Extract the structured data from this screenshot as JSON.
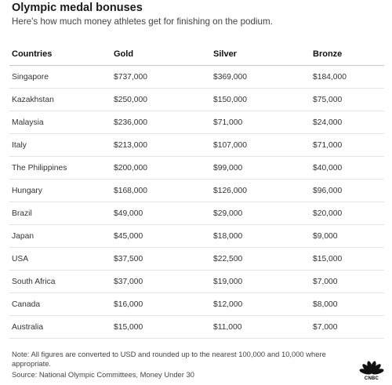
{
  "header": {
    "title": "Olympic medal bonuses",
    "subtitle": "Here's how much money athletes get for finishing on the podium."
  },
  "table": {
    "columns": [
      "Countries",
      "Gold",
      "Silver",
      "Bronze"
    ],
    "rows": [
      [
        "Singapore",
        "$737,000",
        "$369,000",
        "$184,000"
      ],
      [
        "Kazakhstan",
        "$250,000",
        "$150,000",
        "$75,000"
      ],
      [
        "Malaysia",
        "$236,000",
        "$71,000",
        "$24,000"
      ],
      [
        "Italy",
        "$213,000",
        "$107,000",
        "$71,000"
      ],
      [
        "The Philippines",
        "$200,000",
        "$99,000",
        "$40,000"
      ],
      [
        "Hungary",
        "$168,000",
        "$126,000",
        "$96,000"
      ],
      [
        "Brazil",
        "$49,000",
        "$29,000",
        "$20,000"
      ],
      [
        "Japan",
        "$45,000",
        "$18,000",
        "$9,000"
      ],
      [
        "USA",
        "$37,500",
        "$22,500",
        "$15,000"
      ],
      [
        "South Africa",
        "$37,000",
        "$19,000",
        "$7,000"
      ],
      [
        "Canada",
        "$16,000",
        "$12,000",
        "$8,000"
      ],
      [
        "Australia",
        "$15,000",
        "$11,000",
        "$7,000"
      ]
    ]
  },
  "footer": {
    "note": "Note: All figures are converted to USD and rounded up to the nearest 100,000 and 10,000 where appropriate.",
    "source": "Source: National Olympic Committees, Money Under 30",
    "logo_text": "CNBC",
    "logo_icon": "cnbc-peacock-icon",
    "logo_colors": [
      "#FCB711",
      "#F37021",
      "#CC004C",
      "#6460AA",
      "#0089D0",
      "#0DB14B"
    ]
  }
}
